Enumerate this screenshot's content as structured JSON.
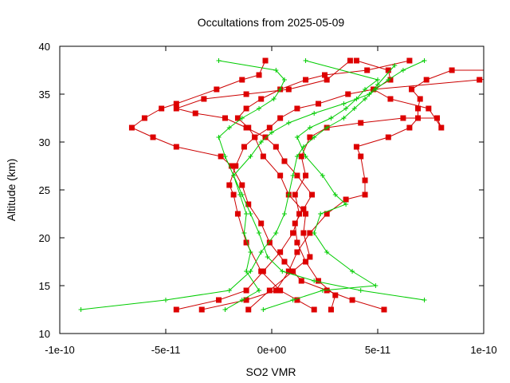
{
  "chart_data": {
    "type": "line",
    "title": "Occultations from 2025-05-09",
    "xlabel": "SO2 VMR",
    "ylabel": "Altitude (km)",
    "xlim": [
      -1e-10,
      1e-10
    ],
    "ylim": [
      10,
      40
    ],
    "x_tick_labels": [
      "-1e-10",
      "-5e-11",
      "0e+00",
      "5e-11",
      "1e-10"
    ],
    "x_tick_values": [
      -1e-10,
      -5e-11,
      0,
      5e-11,
      1e-10
    ],
    "y_tick_labels": [
      "10",
      "15",
      "20",
      "25",
      "30",
      "35",
      "40"
    ],
    "y_tick_values": [
      10,
      15,
      20,
      25,
      30,
      35,
      40
    ],
    "grid": false,
    "legend": "none",
    "colors": {
      "red_series": "#ff0000",
      "red_marker_fill": "#dd0000",
      "line_red": "#cc0000",
      "green_series": "#00cc00"
    },
    "series": [
      {
        "style": "red-square",
        "x": [
          2e-11,
          1.2e-11,
          4e-12,
          -5e-12,
          -1.2e-11,
          -1.6e-11,
          -1.8e-11,
          -2e-11,
          -1.7e-11,
          -1.3e-11,
          -8e-12,
          -1.1e-11,
          -1.6e-11,
          -1.2e-11,
          -5e-12,
          4e-12,
          1.6e-11,
          2.5e-11,
          4.5e-11,
          6.5e-11
        ],
        "y": [
          12.5,
          13.5,
          14.5,
          16.5,
          19.5,
          22.5,
          24.5,
          25.5,
          27.5,
          29.5,
          30.5,
          31.5,
          32.5,
          33.5,
          34.5,
          35.5,
          36.5,
          37.0,
          37.5,
          38.5
        ]
      },
      {
        "style": "red-square",
        "x": [
          -4.5e-11,
          -2.5e-11,
          -1.2e-11,
          -4e-12,
          4e-12,
          1e-11,
          1.3e-11,
          1.1e-11,
          1.6e-11,
          1.4e-11,
          1.8e-11,
          2.6e-11,
          4.2e-11,
          6.2e-11,
          7.8e-11,
          8e-11,
          7.4e-11,
          5.6e-11,
          4.8e-11,
          9.8e-11,
          1.45e-10
        ],
        "y": [
          12.5,
          13.5,
          14.5,
          16.5,
          18.5,
          20.5,
          22.5,
          24.5,
          26.5,
          28.5,
          30.5,
          31.5,
          32.0,
          32.5,
          32.5,
          31.5,
          33.5,
          34.5,
          35.5,
          36.5,
          37.5
        ]
      },
      {
        "style": "red-square",
        "x": [
          5.3e-11,
          3.8e-11,
          2.6e-11,
          1.4e-11,
          6e-12,
          -1e-12,
          -5e-12,
          -1.1e-11,
          -1.4e-11,
          -1.9e-11,
          -2.4e-11,
          -4.5e-11,
          -5.6e-11,
          -6.6e-11,
          -6e-11,
          -5.2e-11,
          -4.5e-11,
          -2.6e-11,
          -1.4e-11,
          -6e-12,
          -3e-12
        ],
        "y": [
          12.5,
          13.5,
          14.5,
          15.5,
          17.5,
          19.5,
          21.5,
          23.5,
          25.5,
          27.5,
          28.5,
          29.5,
          30.5,
          31.5,
          32.5,
          33.5,
          34.0,
          35.5,
          36.5,
          37.0,
          38.5
        ]
      },
      {
        "style": "red-square",
        "x": [
          -3.3e-11,
          -1.2e-11,
          2e-12,
          8e-12,
          1.2e-11,
          1.8e-11,
          2.6e-11,
          3.5e-11,
          4.4e-11,
          4.4e-11,
          4.2e-11,
          4e-11,
          5.5e-11,
          6.5e-11,
          6.9e-11,
          6.9e-11,
          7e-11,
          6.6e-11,
          7.3e-11,
          8.5e-11,
          1.12e-10
        ],
        "y": [
          12.5,
          13.5,
          14.5,
          16.5,
          18.5,
          20.5,
          22.5,
          24.0,
          24.5,
          26.0,
          28.5,
          29.5,
          30.5,
          31.5,
          32.5,
          33.5,
          34.5,
          35.5,
          36.5,
          37.5,
          37.5
        ]
      },
      {
        "style": "red-square",
        "x": [
          -1.1e-11,
          -1e-12,
          1e-11,
          1.8e-11,
          1.5e-11,
          1.6e-11,
          8e-12,
          4e-12,
          -4e-12,
          -8e-12,
          -1e-12,
          4e-12,
          1.2e-11,
          2.2e-11,
          3.6e-11,
          4.8e-11,
          5.6e-11,
          5.5e-11,
          4e-11
        ],
        "y": [
          12.5,
          14.5,
          16.5,
          18.0,
          20.5,
          22.5,
          24.5,
          26.5,
          28.5,
          30.5,
          31.5,
          32.5,
          33.5,
          34.0,
          35.0,
          35.5,
          36.5,
          37.5,
          38.5
        ]
      },
      {
        "style": "red-square",
        "x": [
          2.8e-11,
          3e-11,
          2.2e-11,
          1.6e-11,
          1.2e-11,
          1.1e-11,
          1.5e-11,
          1.9e-11,
          1.2e-11,
          6e-12,
          2e-12,
          -3e-12,
          -1.2e-11,
          -2.2e-11,
          -3.6e-11,
          -4.5e-11,
          -3.2e-11,
          -1.2e-11,
          8e-12,
          2.6e-11,
          3.7e-11
        ],
        "y": [
          12.5,
          14.0,
          15.5,
          17.5,
          19.5,
          21.5,
          23.0,
          24.5,
          26.5,
          28.0,
          29.5,
          30.5,
          31.5,
          32.5,
          33.0,
          33.5,
          34.5,
          35.0,
          35.5,
          36.5,
          38.5
        ]
      }
    ],
    "series_green": [
      {
        "style": "green-plus",
        "x": [
          -9e-11,
          -5e-11,
          -2e-11,
          -1e-11,
          -5e-12,
          2e-12,
          6e-12,
          8e-12,
          1e-11,
          1.2e-11,
          1.5e-11,
          2e-11,
          2.6e-11,
          3.4e-11,
          3.9e-11,
          4.4e-11,
          4.9e-11,
          5.5e-11,
          6.2e-11,
          7.2e-11
        ],
        "y": [
          12.5,
          13.5,
          14.5,
          16.5,
          18.5,
          20.5,
          22.5,
          24.5,
          26.5,
          28.5,
          29.5,
          30.5,
          31.5,
          32.5,
          33.5,
          34.5,
          35.5,
          36.5,
          37.5,
          38.5
        ]
      },
      {
        "style": "green-plus",
        "x": [
          7.2e-11,
          4.2e-11,
          2e-11,
          5e-12,
          -2e-12,
          -6e-12,
          -1e-11,
          -1.4e-11,
          -1.8e-11,
          -2.2e-11,
          -2.5e-11,
          -2e-11,
          -1.4e-11,
          -6e-12,
          1e-12,
          4e-12,
          6e-12,
          2e-12,
          -2.5e-11
        ],
        "y": [
          13.5,
          14.5,
          15.5,
          16.5,
          18.0,
          20.5,
          22.5,
          24.5,
          26.5,
          28.5,
          30.5,
          31.5,
          32.5,
          33.5,
          34.5,
          35.5,
          36.5,
          37.5,
          38.5
        ]
      },
      {
        "style": "green-plus",
        "x": [
          -4e-12,
          1e-11,
          2.4e-11,
          4.9e-11,
          3.8e-11,
          2.6e-11,
          2e-11,
          2.3e-11,
          3.5e-11,
          3e-11,
          2.4e-11,
          1.6e-11,
          1.2e-11,
          1.8e-11,
          2.8e-11,
          3.5e-11,
          4e-11,
          4.4e-11,
          5e-11,
          1.6e-11
        ],
        "y": [
          12.5,
          13.5,
          14.5,
          15.0,
          16.5,
          18.5,
          20.5,
          22.5,
          23.5,
          24.5,
          26.5,
          28.5,
          30.5,
          31.5,
          32.5,
          33.5,
          34.5,
          35.5,
          36.5,
          38.5
        ]
      },
      {
        "style": "green-plus",
        "x": [
          -2.2e-11,
          -1.4e-11,
          -6e-12,
          -1.2e-11,
          -1e-11,
          -1.3e-11,
          -1.2e-11,
          -1.5e-11,
          -1.8e-11,
          -1e-11,
          -5e-12,
          0,
          8e-12,
          2e-11,
          3.4e-11,
          4.6e-11,
          5e-11,
          5.8e-11
        ],
        "y": [
          12.5,
          13.5,
          14.5,
          16.5,
          18.5,
          20.5,
          22.5,
          24.5,
          26.5,
          28.5,
          30.0,
          31.0,
          32.0,
          33.0,
          34.0,
          35.0,
          36.0,
          38.0
        ]
      }
    ]
  }
}
